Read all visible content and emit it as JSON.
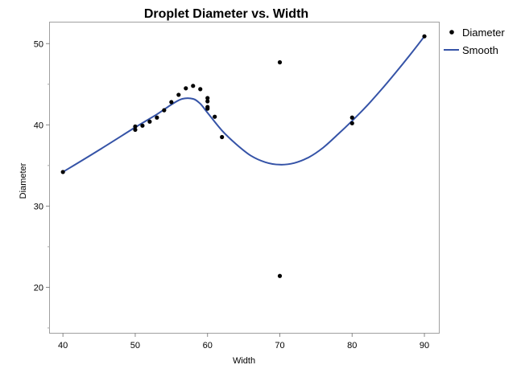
{
  "chart_data": {
    "type": "scatter",
    "title": "Droplet Diameter vs. Width",
    "xlabel": "Width",
    "ylabel": "Diameter",
    "xlim": [
      38.2,
      92
    ],
    "ylim": [
      14.4,
      52.6
    ],
    "x_ticks": [
      40,
      50,
      60,
      70,
      80,
      90
    ],
    "y_ticks": [
      20,
      30,
      40,
      50
    ],
    "grid": false,
    "legend_position": "right",
    "series": [
      {
        "name": "Diameter",
        "kind": "points",
        "color": "#000000",
        "points": [
          {
            "x": 40,
            "y": 34.2
          },
          {
            "x": 50,
            "y": 39.4
          },
          {
            "x": 50,
            "y": 39.8
          },
          {
            "x": 51,
            "y": 39.9
          },
          {
            "x": 52,
            "y": 40.4
          },
          {
            "x": 53,
            "y": 40.9
          },
          {
            "x": 54,
            "y": 41.8
          },
          {
            "x": 55,
            "y": 42.8
          },
          {
            "x": 56,
            "y": 43.7
          },
          {
            "x": 57,
            "y": 44.5
          },
          {
            "x": 58,
            "y": 44.8
          },
          {
            "x": 59,
            "y": 44.4
          },
          {
            "x": 60,
            "y": 43.3
          },
          {
            "x": 60,
            "y": 42.9
          },
          {
            "x": 60,
            "y": 42.2
          },
          {
            "x": 60,
            "y": 42.0
          },
          {
            "x": 61,
            "y": 41.0
          },
          {
            "x": 62,
            "y": 38.5
          },
          {
            "x": 70,
            "y": 47.7
          },
          {
            "x": 70,
            "y": 21.4
          },
          {
            "x": 80,
            "y": 40.9
          },
          {
            "x": 80,
            "y": 40.2
          },
          {
            "x": 90,
            "y": 50.9
          }
        ]
      },
      {
        "name": "Smooth",
        "kind": "line",
        "color": "#3553a7",
        "points": [
          {
            "x": 40,
            "y": 34.2
          },
          {
            "x": 45,
            "y": 36.9
          },
          {
            "x": 50,
            "y": 39.7
          },
          {
            "x": 53,
            "y": 41.3
          },
          {
            "x": 55,
            "y": 42.5
          },
          {
            "x": 56.5,
            "y": 43.2
          },
          {
            "x": 58,
            "y": 43.2
          },
          {
            "x": 59,
            "y": 42.6
          },
          {
            "x": 60,
            "y": 41.5
          },
          {
            "x": 62,
            "y": 39.3
          },
          {
            "x": 64,
            "y": 37.6
          },
          {
            "x": 66,
            "y": 36.2
          },
          {
            "x": 68,
            "y": 35.4
          },
          {
            "x": 70,
            "y": 35.1
          },
          {
            "x": 72,
            "y": 35.3
          },
          {
            "x": 74,
            "y": 36.0
          },
          {
            "x": 76,
            "y": 37.2
          },
          {
            "x": 78,
            "y": 38.8
          },
          {
            "x": 80,
            "y": 40.5
          },
          {
            "x": 82,
            "y": 42.3
          },
          {
            "x": 84,
            "y": 44.3
          },
          {
            "x": 86,
            "y": 46.4
          },
          {
            "x": 88,
            "y": 48.6
          },
          {
            "x": 90,
            "y": 50.9
          }
        ]
      }
    ]
  }
}
